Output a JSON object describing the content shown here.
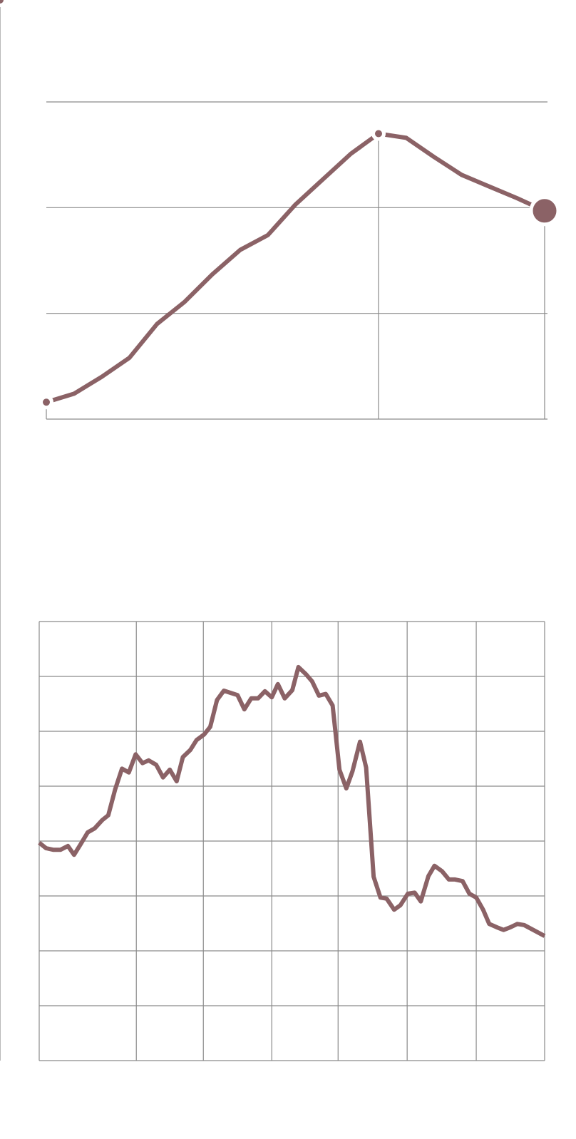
{
  "chart_data": [
    {
      "type": "line",
      "color": "#8b6266",
      "grid": true,
      "xlim": [
        0,
        18
      ],
      "ylim": [
        0,
        3
      ],
      "yticks": [
        0,
        1,
        2,
        3
      ],
      "highlight_points": [
        0,
        12,
        18
      ],
      "x": [
        0,
        1,
        2,
        3,
        4,
        5,
        6,
        7,
        8,
        9,
        10,
        11,
        12,
        13,
        14,
        15,
        16,
        17,
        18
      ],
      "values": [
        0.16,
        0.24,
        0.4,
        0.58,
        0.9,
        1.11,
        1.37,
        1.6,
        1.74,
        2.03,
        2.27,
        2.51,
        2.7,
        2.66,
        2.48,
        2.31,
        2.2,
        2.09,
        1.97
      ]
    },
    {
      "type": "line",
      "color": "#8b6266",
      "grid": true,
      "xlim": [
        0,
        7.39
      ],
      "ylim": [
        0,
        8
      ],
      "yticks": [
        0,
        1,
        2,
        3,
        4,
        5,
        6,
        7,
        8
      ],
      "xticks": [
        0,
        1.42,
        2.4,
        3.4,
        4.37,
        5.38,
        6.39,
        7.39
      ],
      "highlight_points": [
        73
      ],
      "x": [
        0,
        0.1,
        0.21,
        0.31,
        0.42,
        0.51,
        0.61,
        0.71,
        0.81,
        0.92,
        1.01,
        1.11,
        1.21,
        1.31,
        1.41,
        1.51,
        1.6,
        1.71,
        1.81,
        1.91,
        2.01,
        2.1,
        2.21,
        2.3,
        2.41,
        2.5,
        2.6,
        2.7,
        2.8,
        2.9,
        3.0,
        3.1,
        3.2,
        3.3,
        3.4,
        3.49,
        3.59,
        3.7,
        3.79,
        3.9,
        3.99,
        4.09,
        4.19,
        4.29,
        4.39,
        4.49,
        4.58,
        4.69,
        4.78,
        4.89,
        4.99,
        5.08,
        5.19,
        5.28,
        5.39,
        5.49,
        5.58,
        5.69,
        5.78,
        5.89,
        5.99,
        6.08,
        6.19,
        6.29,
        6.39,
        6.49,
        6.58,
        6.69,
        6.79,
        6.89,
        6.99,
        7.09,
        7.39
      ],
      "values": [
        3.97,
        3.87,
        3.84,
        3.84,
        3.91,
        3.75,
        3.95,
        4.16,
        4.23,
        4.38,
        4.47,
        4.94,
        5.32,
        5.25,
        5.58,
        5.42,
        5.47,
        5.39,
        5.16,
        5.3,
        5.09,
        5.53,
        5.66,
        5.84,
        5.94,
        6.08,
        6.57,
        6.74,
        6.7,
        6.66,
        6.4,
        6.6,
        6.6,
        6.73,
        6.62,
        6.86,
        6.6,
        6.75,
        7.17,
        7.04,
        6.91,
        6.65,
        6.68,
        6.47,
        5.3,
        4.96,
        5.27,
        5.81,
        5.34,
        3.35,
        2.97,
        2.95,
        2.75,
        2.83,
        3.04,
        3.06,
        2.9,
        3.36,
        3.55,
        3.45,
        3.3,
        3.3,
        3.27,
        3.04,
        2.97,
        2.75,
        2.49,
        2.43,
        2.38,
        2.43,
        2.49,
        2.47,
        2.27
      ]
    }
  ]
}
